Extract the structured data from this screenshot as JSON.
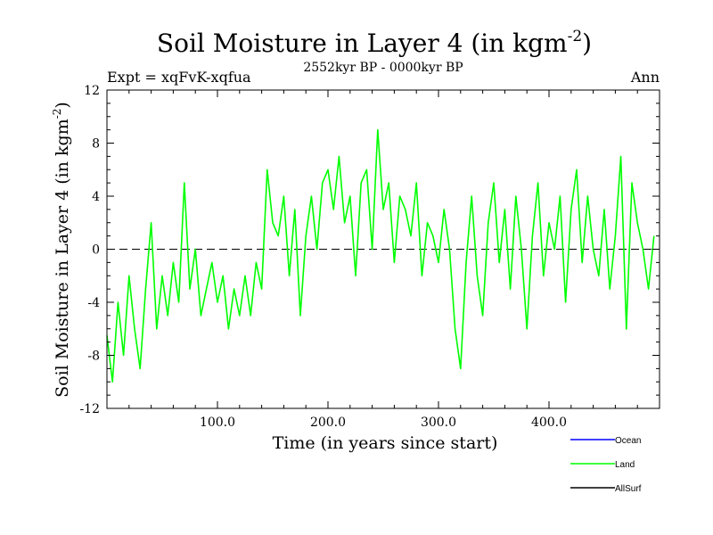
{
  "chart_data": {
    "type": "line",
    "title": "Soil Moisture in Layer 4 (in kgm",
    "title_sup": "-2",
    "title_close": ")",
    "subtitle": "2552kyr BP - 0000kyr BP",
    "expt_label": "Expt = xqFvK-xqfua",
    "season_label": "Ann",
    "xlabel": "Time (in years since start)",
    "ylabel": "Soil Moisture in Layer 4 (in kgm",
    "ylabel_sup": "-2",
    "ylabel_close": ")",
    "xlim": [
      0,
      500
    ],
    "ylim": [
      -12,
      12
    ],
    "xticks": [
      100,
      200,
      300,
      400
    ],
    "xtick_labels": [
      "100.0",
      "200.0",
      "300.0",
      "400.0"
    ],
    "yticks": [
      -12,
      -8,
      -4,
      0,
      4,
      8,
      12
    ],
    "ytick_labels": [
      "-12",
      "-8",
      "-4",
      "0",
      "4",
      "8",
      "12"
    ],
    "reference_line": 0,
    "legend": [
      {
        "name": "Ocean",
        "color": "#0000ff"
      },
      {
        "name": "Land",
        "color": "#00ff00"
      },
      {
        "name": "AllSurf",
        "color": "#000000"
      }
    ],
    "series": [
      {
        "name": "Land",
        "color": "#00ff00",
        "x": [
          0,
          5,
          10,
          15,
          20,
          25,
          30,
          35,
          40,
          45,
          50,
          55,
          60,
          65,
          70,
          75,
          80,
          85,
          90,
          95,
          100,
          105,
          110,
          115,
          120,
          125,
          130,
          135,
          140,
          145,
          150,
          155,
          160,
          165,
          170,
          175,
          180,
          185,
          190,
          195,
          200,
          205,
          210,
          215,
          220,
          225,
          230,
          235,
          240,
          245,
          250,
          255,
          260,
          265,
          270,
          275,
          280,
          285,
          290,
          295,
          300,
          305,
          310,
          315,
          320,
          325,
          330,
          335,
          340,
          345,
          350,
          355,
          360,
          365,
          370,
          375,
          380,
          385,
          390,
          395,
          400,
          405,
          410,
          415,
          420,
          425,
          430,
          435,
          440,
          445,
          450,
          455,
          460,
          465,
          470,
          475,
          480,
          485,
          490,
          495
        ],
        "values": [
          -6.5,
          -10,
          -4,
          -8,
          -2,
          -6,
          -9,
          -3,
          2,
          -6,
          -2,
          -5,
          -1,
          -4,
          5,
          -3,
          0,
          -5,
          -3,
          -1,
          -4,
          -2,
          -6,
          -3,
          -5,
          -2,
          -5,
          -1,
          -3,
          6,
          2,
          1,
          4,
          -2,
          3,
          -5,
          1,
          4,
          0,
          5,
          6,
          3,
          7,
          2,
          4,
          -2,
          5,
          6,
          0,
          9,
          3,
          5,
          -1,
          4,
          3,
          1,
          5,
          -2,
          2,
          1,
          -1,
          3,
          0,
          -6,
          -9,
          -1,
          4,
          -2,
          -5,
          2,
          5,
          -1,
          3,
          -3,
          4,
          0,
          -6,
          1,
          5,
          -2,
          2,
          0,
          4,
          -4,
          3,
          6,
          -1,
          4,
          0,
          -2,
          3,
          -3,
          1,
          7,
          -6,
          5,
          2,
          0,
          -3,
          1
        ]
      }
    ]
  }
}
